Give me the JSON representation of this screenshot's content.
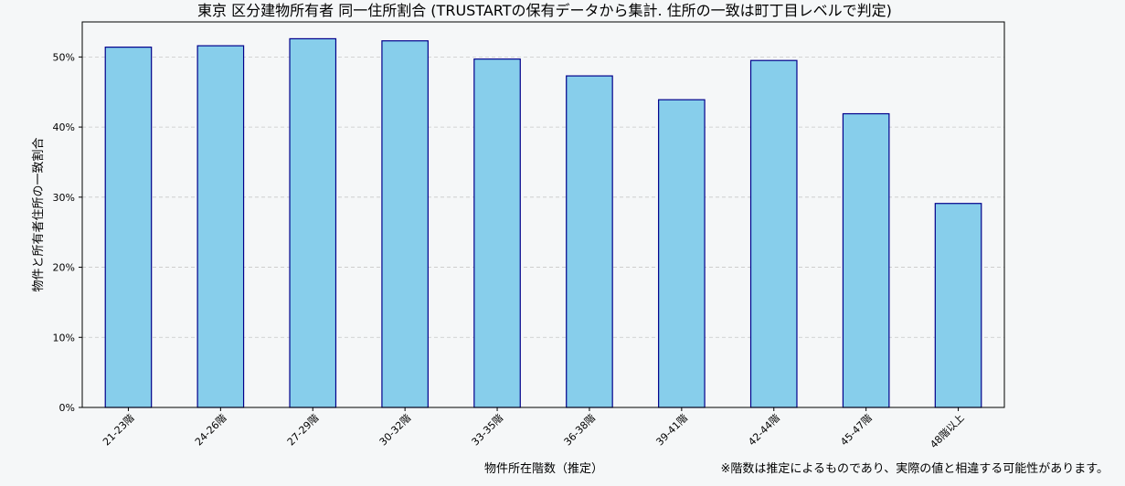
{
  "chart_data": {
    "type": "bar",
    "title": "東京 区分建物所有者 同一住所割合 (TRUSTARTの保有データから集計. 住所の一致は町丁目レベルで判定)",
    "xlabel": "物件所在階数（推定）",
    "ylabel": "物件と所有者住所の一致割合",
    "categories": [
      "21-23階",
      "24-26階",
      "27-29階",
      "30-32階",
      "33-35階",
      "36-38階",
      "39-41階",
      "42-44階",
      "45-47階",
      "48階以上"
    ],
    "values": [
      51.4,
      51.6,
      52.6,
      52.3,
      49.7,
      47.3,
      43.9,
      49.5,
      41.9,
      29.1
    ],
    "ylim": [
      0,
      55
    ],
    "yticks": [
      0,
      10,
      20,
      30,
      40,
      50
    ],
    "ytick_labels": [
      "0%",
      "10%",
      "20%",
      "30%",
      "40%",
      "50%"
    ],
    "grid": "horizontal dashed",
    "bar_color": "#87ceeb",
    "bar_edge_color": "#00008b",
    "note": "※階数は推定によるものであり、実際の値と相違する可能性があります。"
  }
}
